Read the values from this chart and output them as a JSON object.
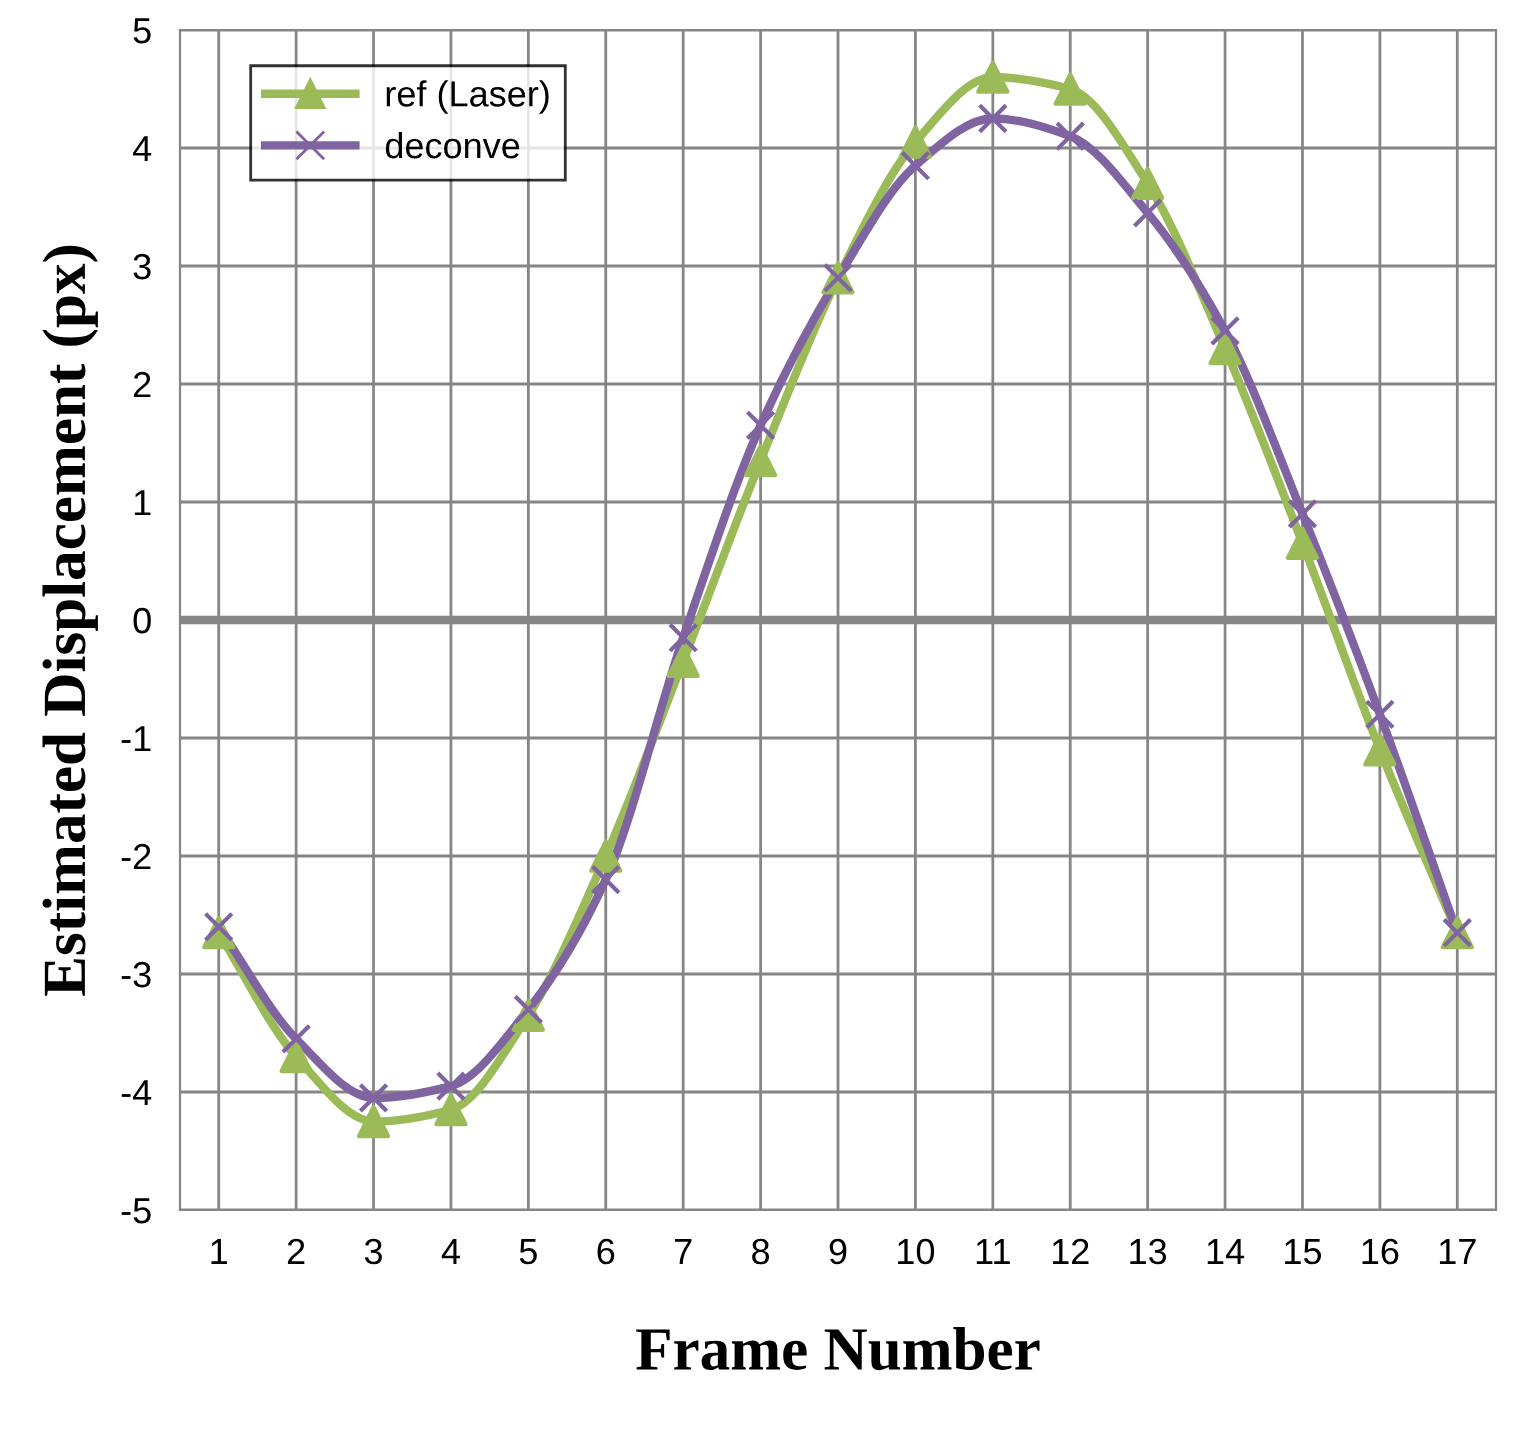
{
  "chart_data": {
    "type": "line",
    "xlabel": "Frame Number",
    "ylabel": "Estimated Displacement (px)",
    "categories": [
      "1",
      "2",
      "3",
      "4",
      "5",
      "6",
      "7",
      "8",
      "9",
      "10",
      "11",
      "12",
      "13",
      "14",
      "15",
      "16",
      "17"
    ],
    "series": [
      {
        "name": "ref (Laser)",
        "color": "#9bbb59",
        "marker": "triangle",
        "values": [
          -2.65,
          -3.7,
          -4.25,
          -4.15,
          -3.35,
          -2.0,
          -0.35,
          1.35,
          2.9,
          4.05,
          4.6,
          4.5,
          3.7,
          2.3,
          0.65,
          -1.1,
          -2.65
        ]
      },
      {
        "name": "deconve",
        "color": "#8064a2",
        "marker": "cross",
        "values": [
          -2.6,
          -3.55,
          -4.05,
          -3.95,
          -3.3,
          -2.2,
          -0.15,
          1.65,
          2.9,
          3.85,
          4.25,
          4.1,
          3.45,
          2.45,
          0.9,
          -0.8,
          -2.65
        ]
      }
    ],
    "ylim": [
      -5,
      5
    ],
    "yticks": [
      -5,
      -4,
      -3,
      -2,
      -1,
      0,
      1,
      2,
      3,
      4,
      5
    ],
    "ref_lines": [
      {
        "axis": "y",
        "value": 0,
        "color": "#868686"
      }
    ],
    "grid": true,
    "legend": "top left",
    "line_style": "solid"
  }
}
